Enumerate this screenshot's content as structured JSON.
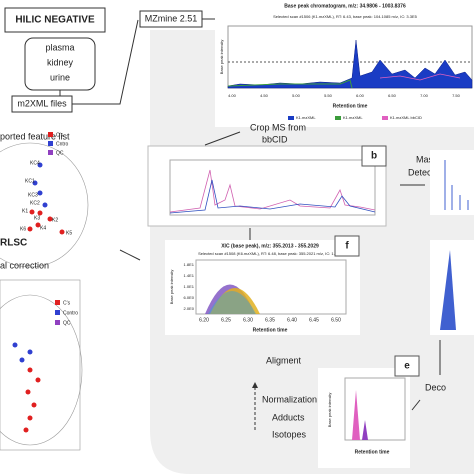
{
  "header": {
    "title": "HILIC NEGATIVE",
    "samples": [
      "plasma",
      "kidney",
      "urine"
    ],
    "files": "m2XML files",
    "software": "MZmine 2.51"
  },
  "chromatogram": {
    "title": "Base peak chromatogram, m/z: 34.9806 - 1003.8376",
    "subtitle": "Selected scan #1506 (K1.mzXML), RT: 6.43, base peak: 104.1085 m/z, IC: 3.3E5",
    "y_label": "Base peak intensity",
    "x_label": "Retention time",
    "x_ticks": [
      "4.00",
      "4.50",
      "5.00",
      "5.50",
      "6.00",
      "6.50",
      "7.00",
      "7.50"
    ],
    "legend": [
      "K1.mzXML",
      "K1.mzXML",
      "K1.mzXML bbCID"
    ]
  },
  "steps": {
    "crop": [
      "Crop MS from",
      "bbCID"
    ],
    "mass_detection": [
      "Mass",
      "Detection"
    ],
    "alignment": "Aligment",
    "post": [
      "Normalization",
      "Adducts",
      "Isotopes"
    ],
    "deconvolution": "Deco"
  },
  "panels": {
    "b": "b",
    "f": "f",
    "e": "e"
  },
  "feature_list": {
    "title": "ported feature list",
    "legend": [
      "C's",
      "Cntro",
      "QC"
    ],
    "points": [
      "KC4",
      "KC1",
      "KC3",
      "KC2",
      "K1",
      "K3",
      "K2",
      "K4",
      "K6",
      "K5"
    ]
  },
  "rlsc": {
    "title": "RLSC",
    "subtitle": "al correction",
    "legend": [
      "C's",
      "Contro",
      "QC"
    ]
  },
  "xic": {
    "title": "XIC (base peak), m/z: 355.2013 - 355.2029",
    "subtitle": "Selected scan #1508 (K6.mzXML), RT: 6.48, base peak: 355.2021 m/z, IC: 1.1E2",
    "y_label": "Base peak intensity",
    "x_label": "Retention time",
    "x_ticks": [
      "6.20",
      "6.25",
      "6.30",
      "6.35",
      "6.40",
      "6.45",
      "6.50"
    ],
    "y_ticks": [
      "1.8E1",
      "1.4E1",
      "1.0E1",
      "6.0E0",
      "2.0E0"
    ]
  },
  "peak": {
    "y_label": "Base peak intensity",
    "x_label": "Retention time"
  }
}
